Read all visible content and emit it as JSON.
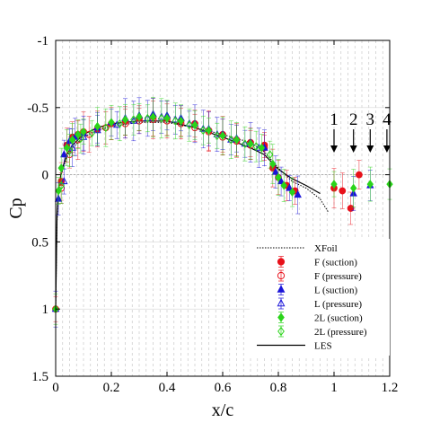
{
  "chart_data": {
    "type": "scatter",
    "xlabel": "x/c",
    "ylabel": "Cp",
    "xlim": [
      0,
      1.2
    ],
    "ylim": [
      1.5,
      -1
    ],
    "y_reversed": true,
    "grid": "vertical dashed",
    "x_ticks": [
      0,
      0.2,
      0.4,
      0.6,
      0.8,
      1,
      1.2
    ],
    "x_tick_labels": [
      "0",
      "0.2",
      "0.4",
      "0.6",
      "0.8",
      "1",
      "1.2"
    ],
    "y_ticks": [
      -1,
      -0.5,
      0,
      0.5,
      1,
      1.5
    ],
    "y_tick_labels": [
      "-1",
      "-0.5",
      "0",
      "0.5",
      "1",
      "1.5"
    ],
    "legend_position": "bottom-right",
    "legend": [
      "XFoil",
      "F (suction)",
      "F (pressure)",
      "L (suction)",
      "L (pressure)",
      "2L (suction)",
      "2L (pressure)",
      "LES"
    ],
    "annotations": [
      {
        "text": "1",
        "x": 1.0
      },
      {
        "text": "2",
        "x": 1.07
      },
      {
        "text": "3",
        "x": 1.13
      },
      {
        "text": "4",
        "x": 1.19
      }
    ],
    "series": [
      {
        "name": "XFoil",
        "style": "dotted-line",
        "color": "#000000",
        "x": [
          0,
          0.005,
          0.01,
          0.02,
          0.04,
          0.06,
          0.1,
          0.15,
          0.2,
          0.3,
          0.4,
          0.5,
          0.6,
          0.7,
          0.75,
          0.8,
          0.85,
          0.9,
          0.95,
          0.98
        ],
        "y": [
          1.0,
          0.35,
          0.15,
          0.0,
          -0.13,
          -0.2,
          -0.28,
          -0.33,
          -0.36,
          -0.39,
          -0.39,
          -0.35,
          -0.3,
          -0.24,
          -0.17,
          -0.05,
          0.05,
          0.1,
          0.18,
          0.28
        ]
      },
      {
        "name": "LES",
        "style": "solid-line",
        "color": "#000000",
        "x": [
          0,
          0.005,
          0.01,
          0.02,
          0.04,
          0.06,
          0.1,
          0.15,
          0.2,
          0.3,
          0.4,
          0.5,
          0.6,
          0.7,
          0.75,
          0.8,
          0.85,
          0.9,
          0.95
        ],
        "y": [
          1.0,
          0.3,
          0.12,
          -0.02,
          -0.15,
          -0.22,
          -0.3,
          -0.35,
          -0.38,
          -0.4,
          -0.4,
          -0.35,
          -0.28,
          -0.2,
          -0.15,
          -0.04,
          0.03,
          0.08,
          0.14
        ]
      },
      {
        "name": "F (suction)",
        "marker": "circle",
        "filled": true,
        "color": "#e8101a",
        "x": [
          0.0,
          0.02,
          0.04,
          0.06,
          0.08,
          0.1,
          0.15,
          0.2,
          0.25,
          0.3,
          0.35,
          0.4,
          0.45,
          0.5,
          0.55,
          0.6,
          0.65,
          0.7,
          0.75,
          0.78,
          0.8,
          0.83,
          0.86,
          1.0,
          1.03,
          1.06,
          1.09
        ],
        "y": [
          1.0,
          0.05,
          -0.22,
          -0.28,
          -0.3,
          -0.32,
          -0.34,
          -0.38,
          -0.4,
          -0.42,
          -0.43,
          -0.42,
          -0.4,
          -0.38,
          -0.33,
          -0.3,
          -0.26,
          -0.24,
          -0.22,
          -0.05,
          0.02,
          0.08,
          0.12,
          0.1,
          0.12,
          0.25,
          0.0
        ]
      },
      {
        "name": "F (pressure)",
        "marker": "circle",
        "filled": false,
        "color": "#e8101a",
        "x": [
          0.02,
          0.05,
          0.08,
          0.12,
          0.18,
          0.25,
          0.3,
          0.35,
          0.4,
          0.45,
          0.5,
          0.55,
          0.6,
          0.65,
          0.7,
          0.75
        ],
        "y": [
          0.1,
          -0.15,
          -0.26,
          -0.3,
          -0.35,
          -0.38,
          -0.4,
          -0.41,
          -0.4,
          -0.38,
          -0.35,
          -0.32,
          -0.28,
          -0.25,
          -0.22,
          -0.2
        ]
      },
      {
        "name": "L (suction)",
        "marker": "triangle",
        "filled": true,
        "color": "#1a14d8",
        "x": [
          0.0,
          0.01,
          0.03,
          0.05,
          0.07,
          0.1,
          0.15,
          0.2,
          0.25,
          0.3,
          0.35,
          0.4,
          0.45,
          0.5,
          0.55,
          0.6,
          0.65,
          0.7,
          0.75,
          0.79,
          0.81,
          0.84,
          0.87,
          1.07,
          1.13
        ],
        "y": [
          1.0,
          0.18,
          -0.15,
          -0.25,
          -0.28,
          -0.31,
          -0.35,
          -0.39,
          -0.42,
          -0.44,
          -0.45,
          -0.44,
          -0.42,
          -0.38,
          -0.34,
          -0.3,
          -0.27,
          -0.24,
          -0.2,
          -0.02,
          0.05,
          0.1,
          0.15,
          0.14,
          0.08
        ]
      },
      {
        "name": "L (pressure)",
        "marker": "triangle",
        "filled": false,
        "color": "#1a14d8",
        "x": [
          0.03,
          0.06,
          0.1,
          0.15,
          0.22,
          0.28,
          0.33,
          0.38,
          0.43,
          0.48,
          0.53,
          0.58,
          0.63,
          0.68,
          0.73
        ],
        "y": [
          0.05,
          -0.2,
          -0.28,
          -0.33,
          -0.37,
          -0.4,
          -0.42,
          -0.43,
          -0.41,
          -0.38,
          -0.34,
          -0.3,
          -0.26,
          -0.23,
          -0.2
        ]
      },
      {
        "name": "2L (suction)",
        "marker": "diamond",
        "filled": true,
        "color": "#2ad41a",
        "x": [
          0.0,
          0.01,
          0.02,
          0.04,
          0.06,
          0.08,
          0.1,
          0.15,
          0.2,
          0.25,
          0.3,
          0.35,
          0.4,
          0.45,
          0.5,
          0.55,
          0.6,
          0.65,
          0.7,
          0.74,
          0.78,
          0.8,
          0.82,
          0.85,
          1.0,
          1.07,
          1.13,
          1.2
        ],
        "y": [
          1.0,
          0.12,
          -0.05,
          -0.2,
          -0.26,
          -0.3,
          -0.32,
          -0.36,
          -0.39,
          -0.41,
          -0.43,
          -0.43,
          -0.42,
          -0.4,
          -0.37,
          -0.33,
          -0.29,
          -0.26,
          -0.23,
          -0.2,
          -0.08,
          0.02,
          0.08,
          0.13,
          0.07,
          0.1,
          0.07,
          0.07
        ]
      },
      {
        "name": "2L (pressure)",
        "marker": "diamond",
        "filled": false,
        "color": "#2ad41a",
        "x": [
          0.02,
          0.05,
          0.09,
          0.13,
          0.18,
          0.23,
          0.28,
          0.33,
          0.38,
          0.43,
          0.48,
          0.53,
          0.58,
          0.63,
          0.68,
          0.72,
          0.77
        ],
        "y": [
          0.08,
          -0.18,
          -0.27,
          -0.31,
          -0.35,
          -0.38,
          -0.41,
          -0.42,
          -0.42,
          -0.4,
          -0.37,
          -0.33,
          -0.29,
          -0.26,
          -0.23,
          -0.21,
          -0.15
        ]
      }
    ]
  }
}
